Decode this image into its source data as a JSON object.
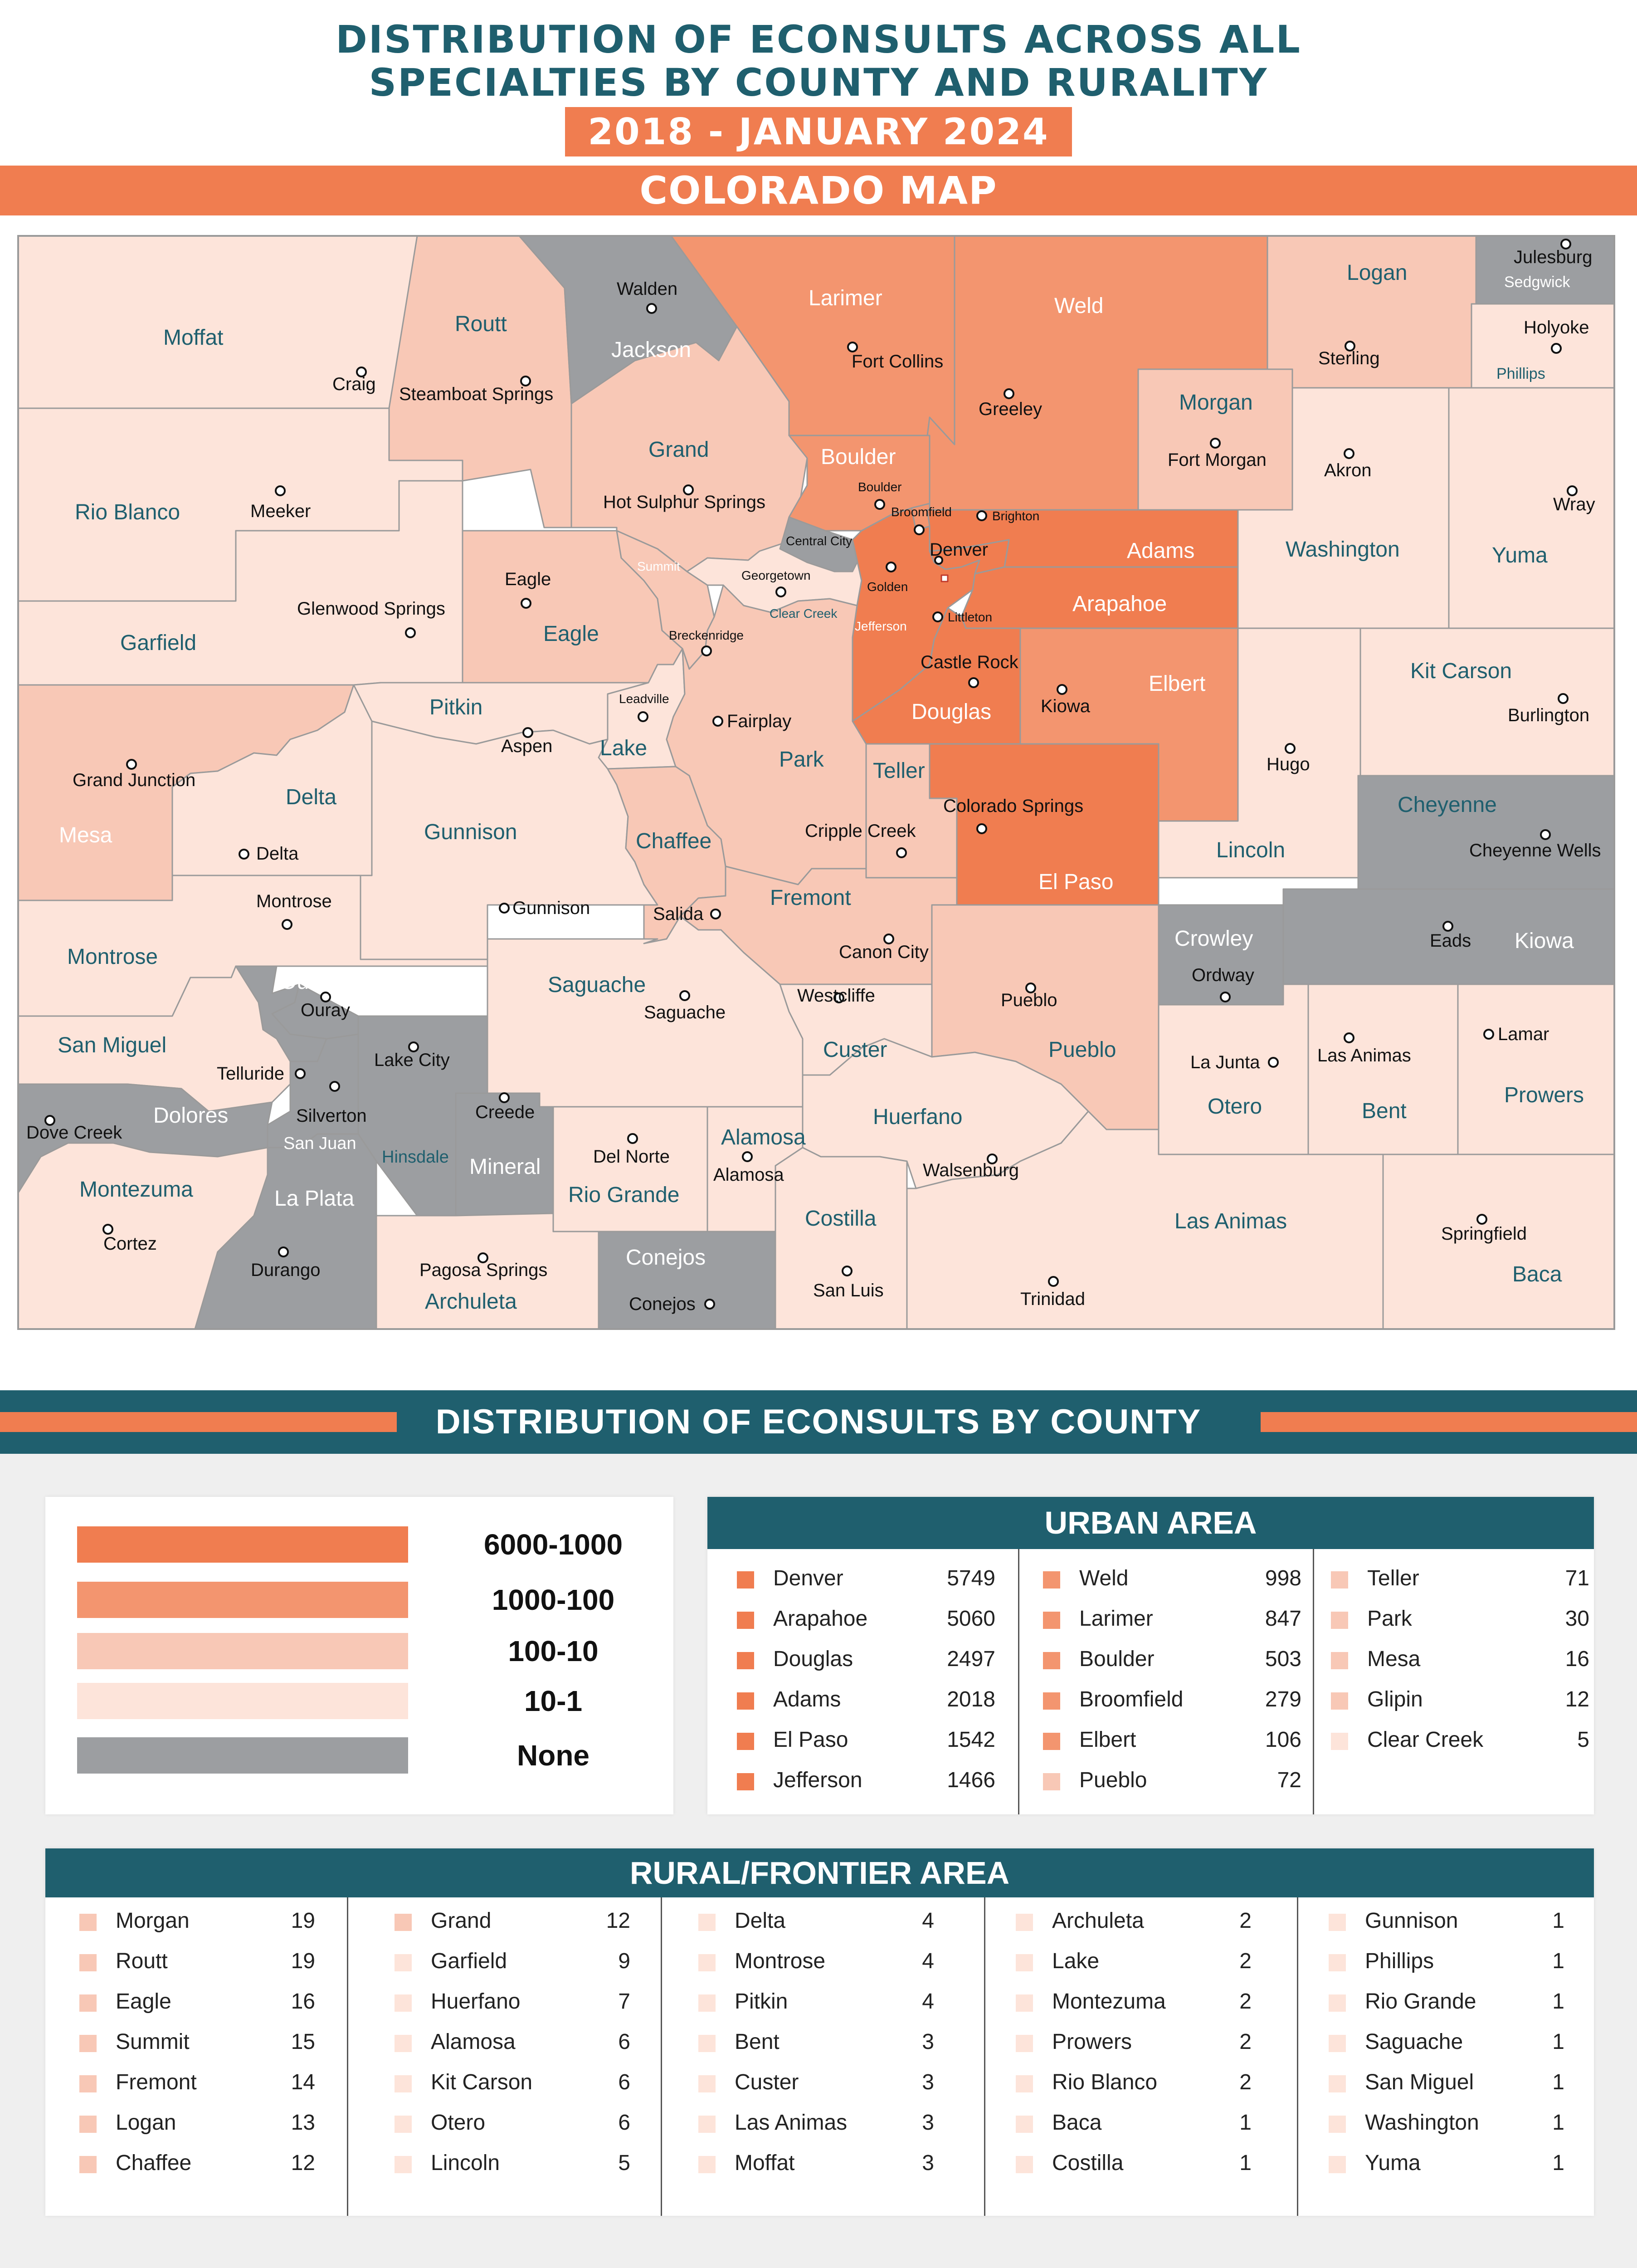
{
  "title": {
    "line1": "DISTRIBUTION OF ECONSULTS ACROSS ALL",
    "line2": "SPECIALTIES BY COUNTY AND RURALITY",
    "date_range": "2018 - JANUARY 2024"
  },
  "map_section": {
    "heading": "COLORADO MAP"
  },
  "colors": {
    "accent": "#f07d50",
    "teal": "#1f5f6e",
    "tier_6000_1000": "#f07d50",
    "tier_1000_100": "#f3956f",
    "tier_100_10": "#f8c8b6",
    "tier_10_1": "#fde4da",
    "tier_none": "#9c9ea1"
  },
  "map": {
    "counties": {
      "moffat": "Moffat",
      "routt": "Routt",
      "jackson": "Jackson",
      "larimer": "Larimer",
      "weld": "Weld",
      "logan": "Logan",
      "sedgwick": "Sedgwick",
      "phillips": "Phillips",
      "morgan": "Morgan",
      "rio_blanco": "Rio Blanco",
      "grand": "Grand",
      "boulder": "Boulder",
      "broomfield": "Broomfield",
      "adams": "Adams",
      "washington": "Washington",
      "yuma": "Yuma",
      "garfield": "Garfield",
      "eagle": "Eagle",
      "summit": "Summit",
      "clear_creek": "Clear Creek",
      "jefferson": "Jefferson",
      "denver": "Denver",
      "arapahoe": "Arapahoe",
      "central_city": "Central City",
      "mesa": "Mesa",
      "pitkin": "Pitkin",
      "lake": "Lake",
      "park": "Park",
      "douglas": "Douglas",
      "elbert": "Elbert",
      "kit_carson": "Kit Carson",
      "delta": "Delta",
      "gunnison": "Gunnison",
      "chaffee": "Chaffee",
      "teller": "Teller",
      "el_paso": "El Paso",
      "lincoln": "Lincoln",
      "cheyenne": "Cheyenne",
      "montrose": "Montrose",
      "ouray": "Ouray",
      "fremont": "Fremont",
      "kiowa": "Kiowa",
      "crowley": "Crowley",
      "saguache": "Saguache",
      "custer": "Custer",
      "pueblo": "Pueblo",
      "san_miguel": "San Miguel",
      "hinsdale": "Hinsdale",
      "san_juan": "San Juan",
      "otero": "Otero",
      "bent": "Bent",
      "prowers": "Prowers",
      "dolores": "Dolores",
      "mineral": "Mineral",
      "rio_grande": "Rio Grande",
      "alamosa": "Alamosa",
      "huerfano": "Huerfano",
      "montezuma": "Montezuma",
      "la_plata": "La Plata",
      "costilla": "Costilla",
      "las_animas": "Las Animas",
      "conejos": "Conejos",
      "archuleta": "Archuleta",
      "baca": "Baca"
    },
    "cities": {
      "walden": "Walden",
      "julesburg": "Julesburg",
      "holyoke": "Holyoke",
      "craig": "Craig",
      "steamboat_springs": "Steamboat Springs",
      "fort_collins": "Fort Collins",
      "greeley": "Greeley",
      "sterling": "Sterling",
      "fort_morgan": "Fort Morgan",
      "akron": "Akron",
      "wray": "Wray",
      "meeker": "Meeker",
      "hot_sulphur_springs": "Hot Sulphur Springs",
      "boulder": "Boulder",
      "broomfield": "Broomfield",
      "brighton": "Brighton",
      "denver": "Denver",
      "golden": "Golden",
      "georgetown": "Georgetown",
      "littleton": "Littleton",
      "eagle": "Eagle",
      "glenwood_springs": "Glenwood Springs",
      "breckenridge": "Breckenridge",
      "leadville": "Leadville",
      "fairplay": "Fairplay",
      "aspen": "Aspen",
      "castle_rock": "Castle Rock",
      "kiowa": "Kiowa",
      "hugo": "Hugo",
      "burlington": "Burlington",
      "grand_junction": "Grand Junction",
      "delta": "Delta",
      "colorado_springs": "Colorado Springs",
      "cripple_creek": "Cripple Creek",
      "cheyenne_wells": "Cheyenne Wells",
      "montrose": "Montrose",
      "gunnison": "Gunnison",
      "salida": "Salida",
      "canon_city": "Canon City",
      "eads": "Eads",
      "ordway": "Ordway",
      "ouray": "Ouray",
      "westcliffe": "Westcliffe",
      "pueblo": "Pueblo",
      "saguache": "Saguache",
      "lamar": "Lamar",
      "la_junta": "La Junta",
      "las_animas": "Las Animas",
      "telluride": "Telluride",
      "lake_city": "Lake City",
      "creede": "Creede",
      "silverton": "Silverton",
      "dove_creek": "Dove Creek",
      "del_norte": "Del Norte",
      "alamosa": "Alamosa",
      "walsenburg": "Walsenburg",
      "cortez": "Cortez",
      "springfield": "Springfield",
      "durango": "Durango",
      "pagosa_springs": "Pagosa Springs",
      "conejos": "Conejos",
      "san_luis": "San Luis",
      "trinidad": "Trinidad"
    }
  },
  "distribution_section": {
    "heading": "DISTRIBUTION OF ECONSULTS BY COUNTY"
  },
  "legend": [
    {
      "label": "6000-1000",
      "color": "#f07d50"
    },
    {
      "label": "1000-100",
      "color": "#f3956f"
    },
    {
      "label": "100-10",
      "color": "#f8c8b6"
    },
    {
      "label": "10-1",
      "color": "#fde4da"
    },
    {
      "label": "None",
      "color": "#9c9ea1"
    }
  ],
  "urban": {
    "heading": "URBAN AREA",
    "columns": [
      [
        {
          "name": "Denver",
          "value": "5749",
          "color": "#f07d50"
        },
        {
          "name": "Arapahoe",
          "value": "5060",
          "color": "#f07d50"
        },
        {
          "name": "Douglas",
          "value": "2497",
          "color": "#f07d50"
        },
        {
          "name": "Adams",
          "value": "2018",
          "color": "#f07d50"
        },
        {
          "name": "El Paso",
          "value": "1542",
          "color": "#f07d50"
        },
        {
          "name": "Jefferson",
          "value": "1466",
          "color": "#f07d50"
        }
      ],
      [
        {
          "name": "Weld",
          "value": "998",
          "color": "#f3956f"
        },
        {
          "name": "Larimer",
          "value": "847",
          "color": "#f3956f"
        },
        {
          "name": "Boulder",
          "value": "503",
          "color": "#f3956f"
        },
        {
          "name": "Broomfield",
          "value": "279",
          "color": "#f3956f"
        },
        {
          "name": "Elbert",
          "value": "106",
          "color": "#f3956f"
        },
        {
          "name": "Pueblo",
          "value": "72",
          "color": "#f8c8b6"
        }
      ],
      [
        {
          "name": "Teller",
          "value": "71",
          "color": "#f8c8b6"
        },
        {
          "name": "Park",
          "value": "30",
          "color": "#f8c8b6"
        },
        {
          "name": "Mesa",
          "value": "16",
          "color": "#f8c8b6"
        },
        {
          "name": "Glipin",
          "value": "12",
          "color": "#f8c8b6"
        },
        {
          "name": "Clear Creek",
          "value": "5",
          "color": "#fde4da"
        }
      ]
    ]
  },
  "rural": {
    "heading": "RURAL/FRONTIER AREA",
    "columns": [
      [
        {
          "name": "Morgan",
          "value": "19",
          "color": "#f8c8b6"
        },
        {
          "name": "Routt",
          "value": "19",
          "color": "#f8c8b6"
        },
        {
          "name": "Eagle",
          "value": "16",
          "color": "#f8c8b6"
        },
        {
          "name": "Summit",
          "value": "15",
          "color": "#f8c8b6"
        },
        {
          "name": "Fremont",
          "value": "14",
          "color": "#f8c8b6"
        },
        {
          "name": "Logan",
          "value": "13",
          "color": "#f8c8b6"
        },
        {
          "name": "Chaffee",
          "value": "12",
          "color": "#f8c8b6"
        }
      ],
      [
        {
          "name": "Grand",
          "value": "12",
          "color": "#f8c8b6"
        },
        {
          "name": "Garfield",
          "value": "9",
          "color": "#fde4da"
        },
        {
          "name": "Huerfano",
          "value": "7",
          "color": "#fde4da"
        },
        {
          "name": "Alamosa",
          "value": "6",
          "color": "#fde4da"
        },
        {
          "name": "Kit Carson",
          "value": "6",
          "color": "#fde4da"
        },
        {
          "name": "Otero",
          "value": "6",
          "color": "#fde4da"
        },
        {
          "name": "Lincoln",
          "value": "5",
          "color": "#fde4da"
        }
      ],
      [
        {
          "name": "Delta",
          "value": "4",
          "color": "#fde4da"
        },
        {
          "name": "Montrose",
          "value": "4",
          "color": "#fde4da"
        },
        {
          "name": "Pitkin",
          "value": "4",
          "color": "#fde4da"
        },
        {
          "name": "Bent",
          "value": "3",
          "color": "#fde4da"
        },
        {
          "name": "Custer",
          "value": "3",
          "color": "#fde4da"
        },
        {
          "name": "Las Animas",
          "value": "3",
          "color": "#fde4da"
        },
        {
          "name": "Moffat",
          "value": "3",
          "color": "#fde4da"
        }
      ],
      [
        {
          "name": "Archuleta",
          "value": "2",
          "color": "#fde4da"
        },
        {
          "name": "Lake",
          "value": "2",
          "color": "#fde4da"
        },
        {
          "name": "Montezuma",
          "value": "2",
          "color": "#fde4da"
        },
        {
          "name": "Prowers",
          "value": "2",
          "color": "#fde4da"
        },
        {
          "name": "Rio Blanco",
          "value": "2",
          "color": "#fde4da"
        },
        {
          "name": "Baca",
          "value": "1",
          "color": "#fde4da"
        },
        {
          "name": "Costilla",
          "value": "1",
          "color": "#fde4da"
        }
      ],
      [
        {
          "name": "Gunnison",
          "value": "1",
          "color": "#fde4da"
        },
        {
          "name": "Phillips",
          "value": "1",
          "color": "#fde4da"
        },
        {
          "name": "Rio Grande",
          "value": "1",
          "color": "#fde4da"
        },
        {
          "name": "Saguache",
          "value": "1",
          "color": "#fde4da"
        },
        {
          "name": "San Miguel",
          "value": "1",
          "color": "#fde4da"
        },
        {
          "name": "Washington",
          "value": "1",
          "color": "#fde4da"
        },
        {
          "name": "Yuma",
          "value": "1",
          "color": "#fde4da"
        }
      ]
    ]
  }
}
